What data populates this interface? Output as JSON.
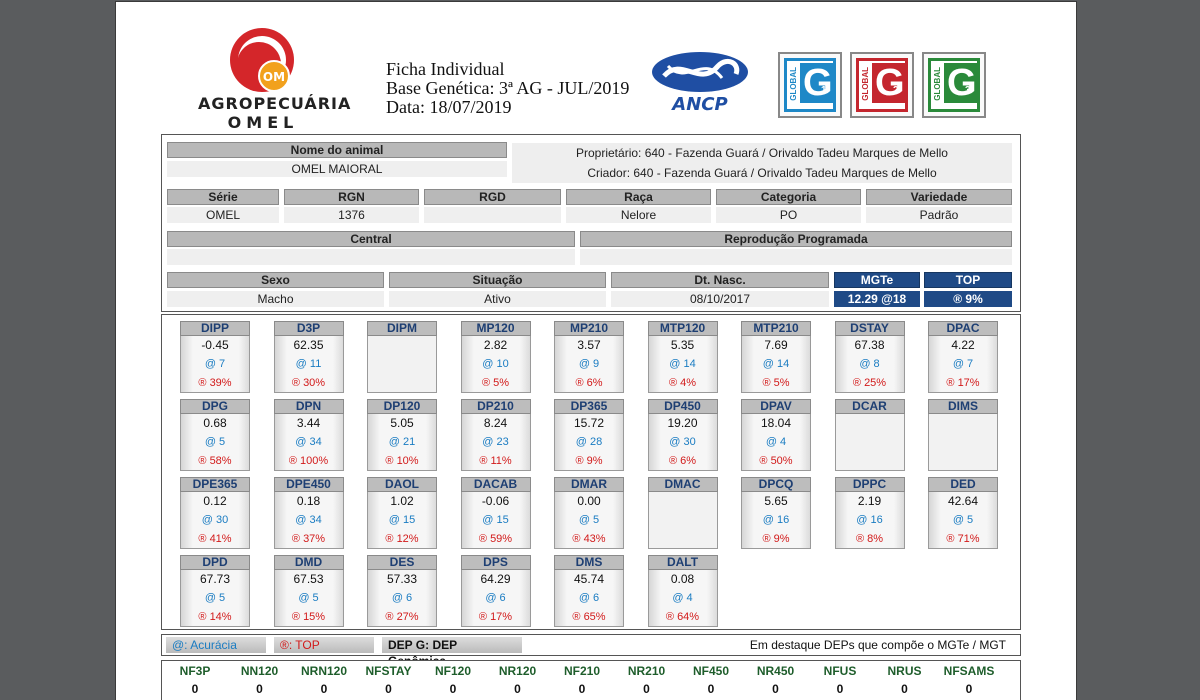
{
  "logo": {
    "line1": "AGROPECUÁRIA",
    "line2": "OMEL",
    "mark": "OM"
  },
  "ficha": {
    "line1": "Ficha Individual",
    "line2": "Base Genética: 3ª AG - JUL/2019",
    "line3": "Data: 18/07/2019"
  },
  "ancp": {
    "text": "ANCP"
  },
  "badges": [
    {
      "global": "GLOBAL",
      "letter": "G",
      "num": "1",
      "color": "#1e88c7"
    },
    {
      "global": "GLOBAL",
      "letter": "G",
      "num": "2",
      "color": "#c4262e"
    },
    {
      "global": "GLOBAL",
      "letter": "G",
      "num": "3",
      "color": "#2a8a3a"
    }
  ],
  "animal": {
    "name_label": "Nome do animal",
    "name": "OMEL MAIORAL",
    "owner": "Proprietário: 640 - Fazenda Guará / Orivaldo Tadeu Marques de Mello",
    "breeder": "Criador: 640 - Fazenda Guará / Orivaldo Tadeu Marques de Mello",
    "serie_label": "Série",
    "serie": "OMEL",
    "rgn_label": "RGN",
    "rgn": "1376",
    "rgd_label": "RGD",
    "rgd": "",
    "raca_label": "Raça",
    "raca": "Nelore",
    "categoria_label": "Categoria",
    "categoria": "PO",
    "variedade_label": "Variedade",
    "variedade": "Padrão",
    "central_label": "Central",
    "central": "",
    "repro_label": "Reprodução Programada",
    "repro": "",
    "sexo_label": "Sexo",
    "sexo": "Macho",
    "situacao_label": "Situação",
    "situacao": "Ativo",
    "nasc_label": "Dt. Nasc.",
    "nasc": "08/10/2017",
    "mgte_label": "MGTe",
    "mgte": "12.29 @18",
    "top_label": "TOP",
    "top": "® 9%"
  },
  "deps": [
    {
      "name": "DIPP",
      "value": "-0.45",
      "acc": "@ 7",
      "top": "® 39%"
    },
    {
      "name": "D3P",
      "value": "62.35",
      "acc": "@ 11",
      "top": "® 30%"
    },
    {
      "name": "DIPM",
      "value": "",
      "acc": "",
      "top": ""
    },
    {
      "name": "MP120",
      "value": "2.82",
      "acc": "@ 10",
      "top": "® 5%"
    },
    {
      "name": "MP210",
      "value": "3.57",
      "acc": "@ 9",
      "top": "® 6%"
    },
    {
      "name": "MTP120",
      "value": "5.35",
      "acc": "@ 14",
      "top": "® 4%"
    },
    {
      "name": "MTP210",
      "value": "7.69",
      "acc": "@ 14",
      "top": "® 5%"
    },
    {
      "name": "DSTAY",
      "value": "67.38",
      "acc": "@ 8",
      "top": "® 25%"
    },
    {
      "name": "DPAC",
      "value": "4.22",
      "acc": "@ 7",
      "top": "® 17%"
    },
    {
      "name": "DPG",
      "value": "0.68",
      "acc": "@ 5",
      "top": "® 58%"
    },
    {
      "name": "DPN",
      "value": "3.44",
      "acc": "@ 34",
      "top": "® 100%"
    },
    {
      "name": "DP120",
      "value": "5.05",
      "acc": "@ 21",
      "top": "® 10%"
    },
    {
      "name": "DP210",
      "value": "8.24",
      "acc": "@ 23",
      "top": "® 11%"
    },
    {
      "name": "DP365",
      "value": "15.72",
      "acc": "@ 28",
      "top": "® 9%"
    },
    {
      "name": "DP450",
      "value": "19.20",
      "acc": "@ 30",
      "top": "® 6%"
    },
    {
      "name": "DPAV",
      "value": "18.04",
      "acc": "@ 4",
      "top": "® 50%"
    },
    {
      "name": "DCAR",
      "value": "",
      "acc": "",
      "top": ""
    },
    {
      "name": "DIMS",
      "value": "",
      "acc": "",
      "top": ""
    },
    {
      "name": "DPE365",
      "value": "0.12",
      "acc": "@ 30",
      "top": "® 41%"
    },
    {
      "name": "DPE450",
      "value": "0.18",
      "acc": "@ 34",
      "top": "® 37%"
    },
    {
      "name": "DAOL",
      "value": "1.02",
      "acc": "@ 15",
      "top": "® 12%"
    },
    {
      "name": "DACAB",
      "value": "-0.06",
      "acc": "@ 15",
      "top": "® 59%"
    },
    {
      "name": "DMAR",
      "value": "0.00",
      "acc": "@ 5",
      "top": "® 43%"
    },
    {
      "name": "DMAC",
      "value": "",
      "acc": "",
      "top": ""
    },
    {
      "name": "DPCQ",
      "value": "5.65",
      "acc": "@ 16",
      "top": "® 9%"
    },
    {
      "name": "DPPC",
      "value": "2.19",
      "acc": "@ 16",
      "top": "® 8%"
    },
    {
      "name": "DED",
      "value": "42.64",
      "acc": "@ 5",
      "top": "® 71%"
    },
    {
      "name": "DPD",
      "value": "67.73",
      "acc": "@ 5",
      "top": "® 14%"
    },
    {
      "name": "DMD",
      "value": "67.53",
      "acc": "@ 5",
      "top": "® 15%"
    },
    {
      "name": "DES",
      "value": "57.33",
      "acc": "@ 6",
      "top": "® 27%"
    },
    {
      "name": "DPS",
      "value": "64.29",
      "acc": "@ 6",
      "top": "® 17%"
    },
    {
      "name": "DMS",
      "value": "45.74",
      "acc": "@ 6",
      "top": "® 65%"
    },
    {
      "name": "DALT",
      "value": "0.08",
      "acc": "@ 4",
      "top": "® 64%"
    }
  ],
  "legend": {
    "acc": "@: Acurácia",
    "top": "®: TOP",
    "gen": "DEP G: DEP Genômica",
    "note": "Em destaque DEPs que compõe o MGTe / MGT"
  },
  "bottom": [
    {
      "name": "NF3P",
      "value": "0"
    },
    {
      "name": "NN120",
      "value": "0"
    },
    {
      "name": "NRN120",
      "value": "0"
    },
    {
      "name": "NFSTAY",
      "value": "0"
    },
    {
      "name": "NF120",
      "value": "0"
    },
    {
      "name": "NR120",
      "value": "0"
    },
    {
      "name": "NF210",
      "value": "0"
    },
    {
      "name": "NR210",
      "value": "0"
    },
    {
      "name": "NF450",
      "value": "0"
    },
    {
      "name": "NR450",
      "value": "0"
    },
    {
      "name": "NFUS",
      "value": "0"
    },
    {
      "name": "NRUS",
      "value": "0"
    },
    {
      "name": "NFSAMS",
      "value": "0"
    }
  ]
}
